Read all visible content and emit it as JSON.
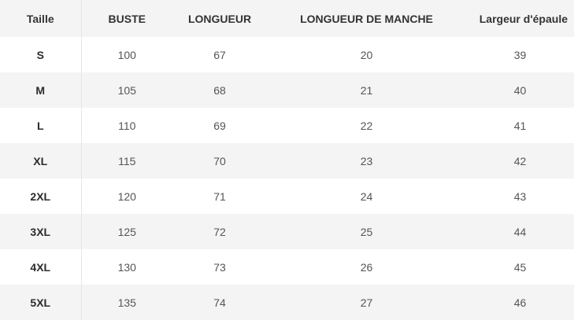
{
  "table": {
    "columns": [
      "Taille",
      "BUSTE",
      "LONGUEUR",
      "LONGUEUR DE MANCHE",
      "Largeur d'épaule"
    ],
    "rows": [
      [
        "S",
        "100",
        "67",
        "20",
        "39"
      ],
      [
        "M",
        "105",
        "68",
        "21",
        "40"
      ],
      [
        "L",
        "110",
        "69",
        "22",
        "41"
      ],
      [
        "XL",
        "115",
        "70",
        "23",
        "42"
      ],
      [
        "2XL",
        "120",
        "71",
        "24",
        "43"
      ],
      [
        "3XL",
        "125",
        "72",
        "25",
        "44"
      ],
      [
        "4XL",
        "130",
        "73",
        "26",
        "45"
      ],
      [
        "5XL",
        "135",
        "74",
        "27",
        "46"
      ]
    ]
  },
  "colors": {
    "header_bg": "#f4f4f4",
    "stripe_bg": "#f4f4f4",
    "text": "#333333"
  }
}
